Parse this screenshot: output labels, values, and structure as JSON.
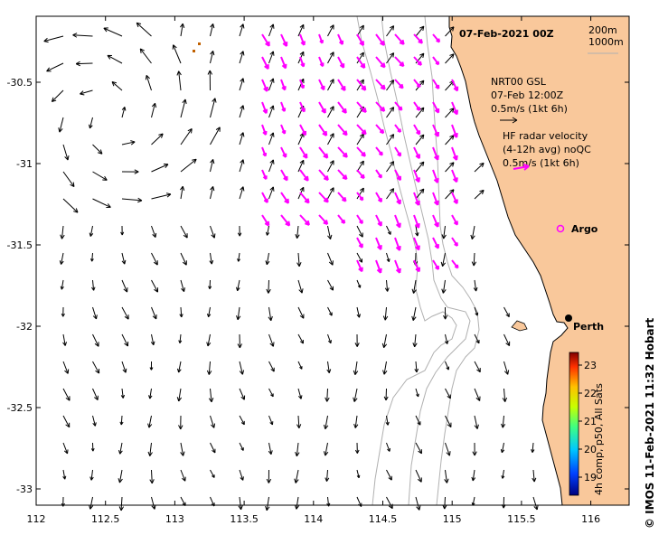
{
  "map": {
    "date_label": "07-Feb-2021 00Z",
    "depth_labels": [
      "200m",
      "1000m"
    ],
    "nrt_label": [
      "NRT00 GSL",
      "07-Feb 12:00Z",
      "0.5m/s (1kt 6h)"
    ],
    "hf_label": [
      "HF radar velocity",
      "(4-12h avg) noQC",
      "0.5m/s (1kt 6h)"
    ],
    "argo_label": "Argo",
    "city_label": "Perth",
    "x_ticks": [
      "112",
      "112.5",
      "113",
      "113.5",
      "114",
      "114.5",
      "115",
      "115.5",
      "116"
    ],
    "y_ticks": [
      "-30.5",
      "-31",
      "-31.5",
      "-32",
      "-32.5",
      "-33"
    ],
    "colorbar_ticks": [
      "23",
      "22",
      "21",
      "20",
      "19"
    ],
    "colorbar_label": "4h comp, p50, All Sats",
    "credit": "© IMOS 11-Feb-2021 11:32 Hobart"
  },
  "colors": {
    "land": "#f9c89b",
    "current_vectors": "#000000",
    "hf_radar_vectors": "#ff00ff",
    "isobaths": "#b0b0b0"
  }
}
